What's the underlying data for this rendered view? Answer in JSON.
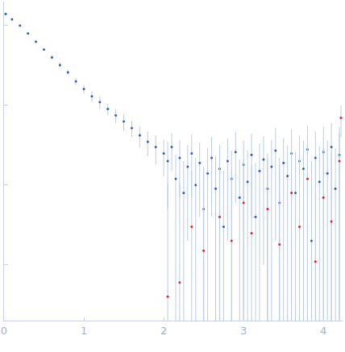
{
  "chart_data": {
    "type": "scatter",
    "log": "y",
    "grid": false,
    "tick_labels": "x",
    "xlim": [
      0,
      4.25
    ],
    "xticks": [
      0,
      1,
      2,
      3,
      4
    ],
    "ylim": [
      0.0002,
      2
    ],
    "yticks": [
      0.001,
      0.01,
      0.1,
      1
    ],
    "marker": "circle",
    "series": [
      {
        "color": "#2d5fb8",
        "x": [
          0.02,
          0.1,
          0.2,
          0.3,
          0.4,
          0.5,
          0.6,
          0.7,
          0.8,
          0.9,
          1.0,
          1.1,
          1.2,
          1.3,
          1.4,
          1.5,
          1.6,
          1.7,
          1.8,
          1.9,
          2.0,
          2.05,
          2.1,
          2.15,
          2.2,
          2.25,
          2.3,
          2.35,
          2.4,
          2.45,
          2.5,
          2.55,
          2.6,
          2.65,
          2.7,
          2.75,
          2.8,
          2.85,
          2.9,
          2.95,
          3.0,
          3.05,
          3.1,
          3.15,
          3.2,
          3.25,
          3.3,
          3.35,
          3.4,
          3.45,
          3.5,
          3.55,
          3.6,
          3.65,
          3.7,
          3.75,
          3.8,
          3.85,
          3.9,
          3.95,
          4.0,
          4.05,
          4.1,
          4.15,
          4.2
        ],
        "values": [
          1.4,
          1.2,
          1.0,
          0.8,
          0.63,
          0.5,
          0.4,
          0.32,
          0.26,
          0.2,
          0.16,
          0.13,
          0.11,
          0.09,
          0.075,
          0.063,
          0.052,
          0.042,
          0.035,
          0.03,
          0.025,
          0.02,
          0.03,
          0.012,
          0.022,
          0.008,
          0.017,
          0.025,
          0.01,
          0.019,
          0.005,
          0.014,
          0.022,
          0.009,
          0.016,
          0.003,
          0.02,
          0.012,
          0.026,
          0.007,
          0.018,
          0.011,
          0.024,
          0.004,
          0.015,
          0.021,
          0.009,
          0.017,
          0.027,
          0.006,
          0.019,
          0.013,
          0.025,
          0.008,
          0.02,
          0.016,
          0.028,
          0.002,
          0.022,
          0.011,
          0.026,
          0.014,
          0.03,
          0.009,
          0.024
        ],
        "errors": [
          0.05,
          0.04,
          0.03,
          0.03,
          0.02,
          0.02,
          0.02,
          0.02,
          0.02,
          0.02,
          0.02,
          0.02,
          0.02,
          0.015,
          0.015,
          0.015,
          0.012,
          0.012,
          0.012,
          0.012,
          0.012,
          0.015,
          0.015,
          0.012,
          0.015,
          0.012,
          0.015,
          0.018,
          0.012,
          0.015,
          0.012,
          0.015,
          0.018,
          0.014,
          0.016,
          0.012,
          0.018,
          0.015,
          0.02,
          0.014,
          0.018,
          0.016,
          0.02,
          0.015,
          0.018,
          0.02,
          0.016,
          0.02,
          0.025,
          0.016,
          0.02,
          0.018,
          0.025,
          0.018,
          0.022,
          0.02,
          0.028,
          0.018,
          0.025,
          0.02,
          0.028,
          0.022,
          0.03,
          0.02,
          0.03
        ]
      },
      {
        "color": "#e0202a",
        "x": [
          2.05,
          2.2,
          2.35,
          2.5,
          2.7,
          2.85,
          3.0,
          3.1,
          3.3,
          3.45,
          3.6,
          3.7,
          3.8,
          3.9,
          4.0,
          4.1,
          4.2,
          4.22
        ],
        "values": [
          0.0004,
          0.0006,
          0.003,
          0.0015,
          0.004,
          0.002,
          0.006,
          0.0025,
          0.005,
          0.0018,
          0.008,
          0.003,
          0.012,
          0.0011,
          0.007,
          0.0035,
          0.02,
          0.07
        ],
        "errors": [
          0.01,
          0.01,
          0.012,
          0.012,
          0.014,
          0.014,
          0.015,
          0.015,
          0.016,
          0.016,
          0.018,
          0.018,
          0.02,
          0.02,
          0.022,
          0.022,
          0.025,
          0.03
        ]
      }
    ]
  }
}
